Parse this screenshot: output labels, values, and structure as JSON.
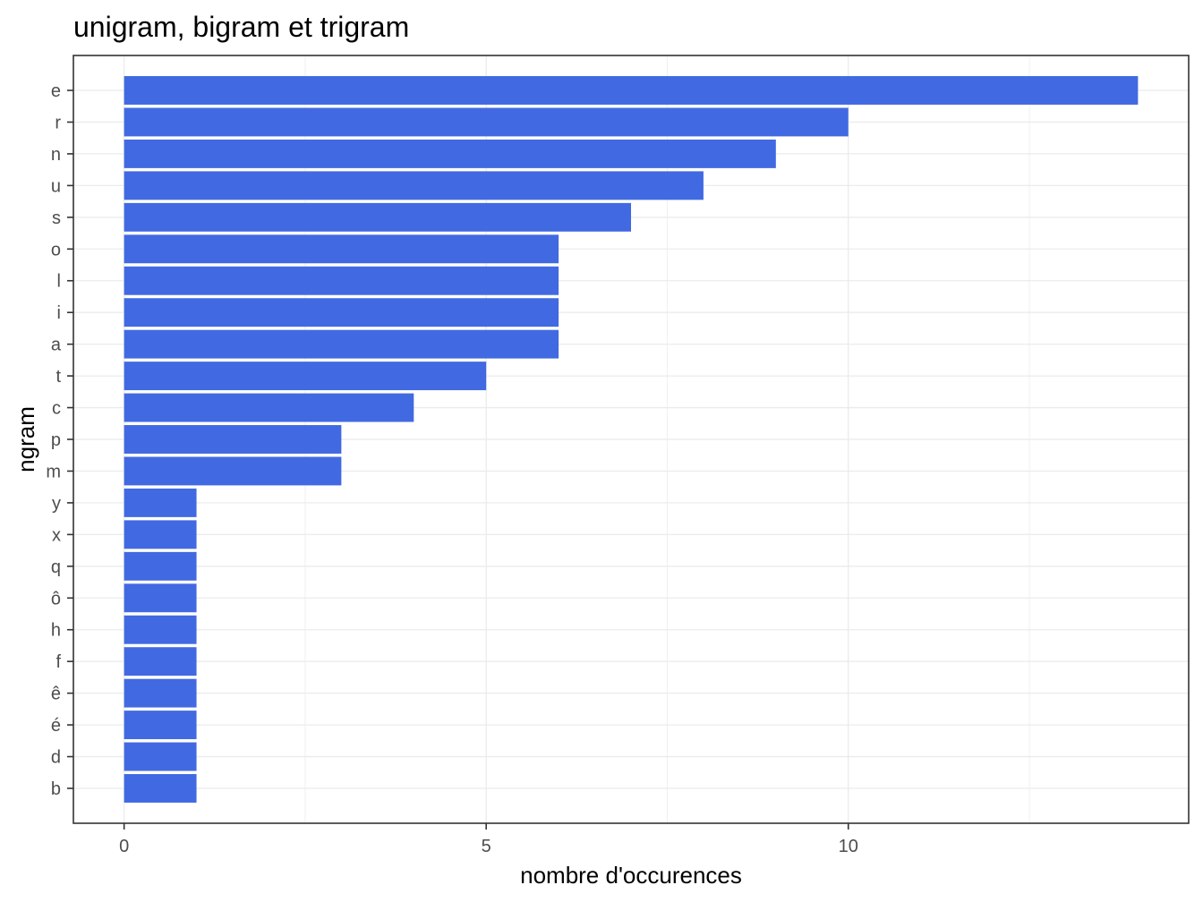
{
  "chart_data": {
    "type": "bar",
    "orientation": "horizontal",
    "title": "unigram, bigram et trigram",
    "xlabel": "nombre d'occurences",
    "ylabel": "ngram",
    "xlim": [
      -0.7,
      14.7
    ],
    "x_ticks": [
      0,
      5,
      10
    ],
    "x_minor_ticks": [
      2.5,
      7.5,
      12.5
    ],
    "grid": true,
    "bar_color": "#4169E1",
    "categories": [
      "e",
      "r",
      "n",
      "u",
      "s",
      "o",
      "l",
      "i",
      "a",
      "t",
      "c",
      "p",
      "m",
      "y",
      "x",
      "q",
      "ô",
      "h",
      "f",
      "ê",
      "é",
      "d",
      "b"
    ],
    "values": [
      14,
      10,
      9,
      8,
      7,
      6,
      6,
      6,
      6,
      5,
      4,
      3,
      3,
      1,
      1,
      1,
      1,
      1,
      1,
      1,
      1,
      1,
      1
    ]
  }
}
